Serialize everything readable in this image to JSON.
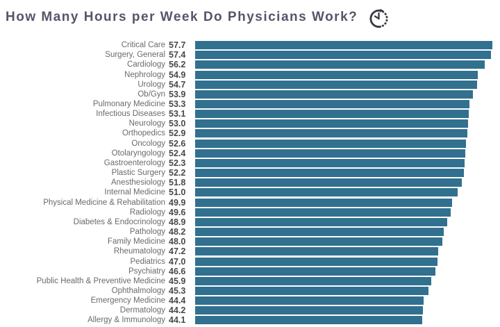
{
  "header": {
    "title": "How Many Hours per Week Do Physicians Work?",
    "icon": "clock-icon"
  },
  "colors": {
    "bar": "#31708f",
    "title_text": "#55556a",
    "category_text": "#6a6a6e",
    "value_text": "#48484c",
    "icon": "#3a3a42"
  },
  "chart_data": {
    "type": "bar",
    "orientation": "horizontal",
    "title": "How Many Hours per Week Do Physicians Work?",
    "xlabel": "",
    "ylabel": "",
    "xlim": [
      0,
      57.7
    ],
    "grid": false,
    "legend": false,
    "value_label_position": "left-of-bar",
    "value_format": "0.0",
    "bar_color": "#31708f",
    "categories": [
      "Critical Care",
      "Surgery, General",
      "Cardiology",
      "Nephrology",
      "Urology",
      "Ob/Gyn",
      "Pulmonary Medicine",
      "Infectious Diseases",
      "Neurology",
      "Orthopedics",
      "Oncology",
      "Otolaryngology",
      "Gastroenterology",
      "Plastic Surgery",
      "Anesthesiology",
      "Internal Medicine",
      "Physical Medicine & Rehabilitation",
      "Radiology",
      "Diabetes & Endocrinology",
      "Pathology",
      "Family Medicine",
      "Rheumatology",
      "Pediatrics",
      "Psychiatry",
      "Public Health & Preventive Medicine",
      "Ophthalmology",
      "Emergency Medicine",
      "Dermatology",
      "Allergy & Immunology"
    ],
    "values": [
      57.7,
      57.4,
      56.2,
      54.9,
      54.7,
      53.9,
      53.3,
      53.1,
      53.0,
      52.9,
      52.6,
      52.4,
      52.3,
      52.2,
      51.8,
      51.0,
      49.9,
      49.6,
      48.9,
      48.2,
      48.0,
      47.2,
      47.0,
      46.6,
      45.9,
      45.3,
      44.4,
      44.2,
      44.1
    ]
  }
}
